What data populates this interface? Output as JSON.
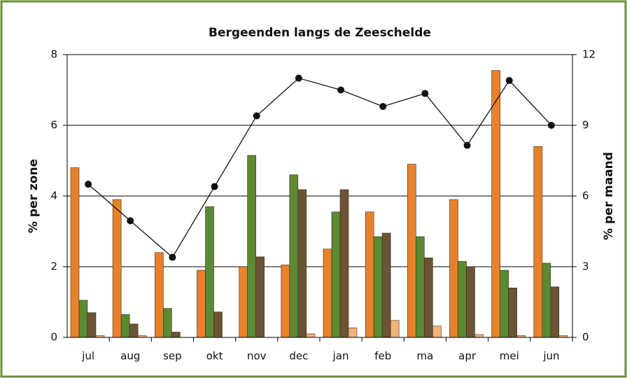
{
  "chart_data": {
    "type": "bar",
    "title": "Bergeenden langs de Zeeschelde",
    "y_label": "% per zone",
    "y2_label": "% per maand",
    "categories": [
      "jul",
      "aug",
      "sep",
      "okt",
      "nov",
      "dec",
      "jan",
      "feb",
      "ma",
      "apr",
      "mei",
      "jun"
    ],
    "series": [
      {
        "color": "#e8822a",
        "values": [
          4.8,
          3.9,
          2.4,
          1.9,
          2.0,
          2.05,
          2.5,
          3.55,
          4.9,
          3.9,
          7.55,
          5.4
        ]
      },
      {
        "color": "#5b8a33",
        "values": [
          1.05,
          0.65,
          0.82,
          3.7,
          5.15,
          4.6,
          3.55,
          2.85,
          2.85,
          2.15,
          1.9,
          2.1
        ]
      },
      {
        "color": "#6b5335",
        "values": [
          0.7,
          0.38,
          0.15,
          0.72,
          2.28,
          4.18,
          4.18,
          2.95,
          2.25,
          2.0,
          1.4,
          1.43
        ]
      },
      {
        "color": "#f2b07a",
        "values": [
          0.05,
          0.05,
          0,
          0,
          0,
          0.1,
          0.27,
          0.48,
          0.32,
          0.08,
          0.05,
          0.05
        ]
      },
      {
        "type": "line",
        "axis": "y2",
        "color": "#111111",
        "values": [
          6.5,
          4.95,
          3.4,
          6.4,
          9.4,
          11.0,
          10.5,
          9.8,
          10.35,
          8.15,
          10.9,
          9.0
        ]
      }
    ],
    "ylim": [
      0,
      8
    ],
    "yticks": [
      0,
      2,
      4,
      6,
      8
    ],
    "y2lim": [
      0,
      12
    ],
    "y2ticks": [
      0,
      3,
      6,
      9,
      12
    ],
    "grid": true
  }
}
